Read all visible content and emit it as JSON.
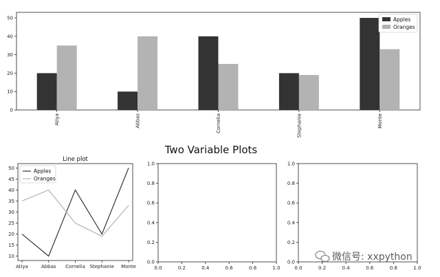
{
  "figure": {
    "suptitle": "Two Variable Plots",
    "watermark": "微信号: xxpython",
    "watermark_icon": "wechat-icon"
  },
  "chart_data": [
    {
      "type": "bar",
      "categories": [
        "Atiya",
        "Abbas",
        "Cornelia",
        "Stephanie",
        "Monte"
      ],
      "series": [
        {
          "name": "Apples",
          "values": [
            20,
            10,
            40,
            20,
            50
          ],
          "color": "#333333"
        },
        {
          "name": "Oranges",
          "values": [
            35,
            40,
            25,
            19,
            33
          ],
          "color": "#b3b3b3"
        }
      ],
      "ylim": [
        0,
        53
      ],
      "yticks": [
        0,
        10,
        20,
        30,
        40,
        50
      ],
      "legend": "top-right",
      "grid": false
    },
    {
      "type": "line",
      "title": "Line plot",
      "categories": [
        "Atiya",
        "Abbas",
        "Cornelia",
        "Stephanie",
        "Monte"
      ],
      "series": [
        {
          "name": "Apples",
          "values": [
            20,
            10,
            40,
            20,
            50
          ],
          "color": "#333333"
        },
        {
          "name": "Oranges",
          "values": [
            35,
            40,
            25,
            19,
            33
          ],
          "color": "#b3b3b3"
        }
      ],
      "ylim": [
        8,
        52
      ],
      "yticks": [
        10,
        15,
        20,
        25,
        30,
        35,
        40,
        45,
        50
      ],
      "legend": "top-left",
      "grid": false
    },
    {
      "type": "scatter",
      "series": [],
      "xlim": [
        0,
        1
      ],
      "ylim": [
        0,
        1
      ],
      "xticks": [
        "0.0",
        "0.2",
        "0.4",
        "0.6",
        "0.8",
        "1.0"
      ],
      "yticks": [
        "0.0",
        "0.2",
        "0.4",
        "0.6",
        "0.8",
        "1.0"
      ]
    },
    {
      "type": "scatter",
      "series": [],
      "xlim": [
        0,
        1
      ],
      "ylim": [
        0,
        1
      ],
      "xticks": [
        "0.0",
        "0.2",
        "0.4",
        "0.6",
        "0.8",
        "1.0"
      ],
      "yticks": [
        "0.0",
        "0.2",
        "0.4",
        "0.6",
        "0.8",
        "1.0"
      ]
    }
  ]
}
